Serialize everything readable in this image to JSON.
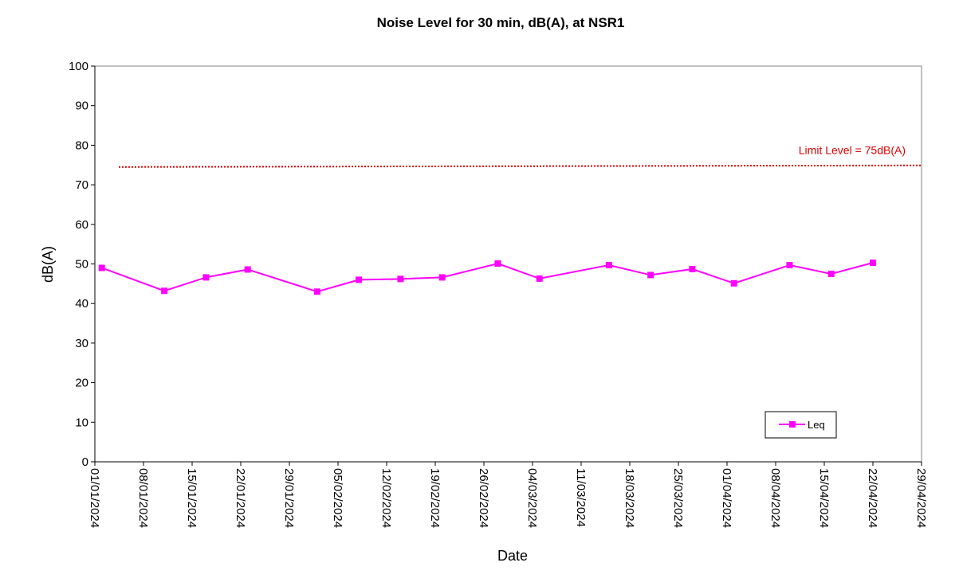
{
  "chart_data": {
    "type": "line",
    "title": "Noise Level for 30 min, dB(A), at NSR1",
    "xlabel": "Date",
    "ylabel": "dB(A)",
    "ylim": [
      0,
      100
    ],
    "yticks": [
      0,
      10,
      20,
      30,
      40,
      50,
      60,
      70,
      80,
      90,
      100
    ],
    "xlim": [
      "01/01/2024",
      "29/04/2024"
    ],
    "xticks": [
      "01/01/2024",
      "08/01/2024",
      "15/01/2024",
      "22/01/2024",
      "29/01/2024",
      "05/02/2024",
      "12/02/2024",
      "19/02/2024",
      "26/02/2024",
      "04/03/2024",
      "11/03/2024",
      "18/03/2024",
      "25/03/2024",
      "01/04/2024",
      "08/04/2024",
      "15/04/2024",
      "22/04/2024",
      "29/04/2024"
    ],
    "grid": false,
    "legend": {
      "position": "bottom-right",
      "entries": [
        "Leq"
      ]
    },
    "series": [
      {
        "name": "Leq",
        "color": "#ff00ff",
        "marker": "square",
        "x": [
          "02/01/2024",
          "11/01/2024",
          "17/01/2024",
          "23/01/2024",
          "02/02/2024",
          "08/02/2024",
          "14/02/2024",
          "20/02/2024",
          "28/02/2024",
          "05/03/2024",
          "15/03/2024",
          "21/03/2024",
          "27/03/2024",
          "02/04/2024",
          "10/04/2024",
          "16/04/2024",
          "22/04/2024"
        ],
        "y": [
          49.0,
          43.2,
          46.6,
          48.6,
          43.0,
          46.0,
          46.2,
          46.6,
          50.1,
          46.3,
          49.7,
          47.2,
          48.7,
          45.1,
          49.7,
          47.5,
          50.3
        ]
      }
    ],
    "reference_lines": [
      {
        "label": "Limit Level = 75dB(A)",
        "y": 74.7,
        "color": "#e00000",
        "style": "dotted"
      }
    ]
  }
}
